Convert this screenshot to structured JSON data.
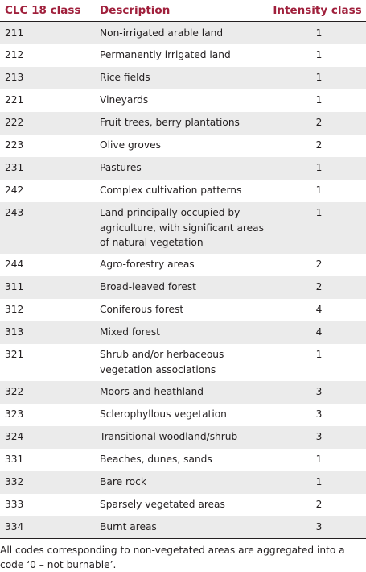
{
  "table": {
    "headers": [
      "CLC 18 class",
      "Description",
      "Intensity class"
    ],
    "rows": [
      {
        "code": "211",
        "description": "Non-irrigated arable land",
        "intensity": "1",
        "lines": 1
      },
      {
        "code": "212",
        "description": "Permanently irrigated land",
        "intensity": "1",
        "lines": 1
      },
      {
        "code": "213",
        "description": "Rice fields",
        "intensity": "1",
        "lines": 1
      },
      {
        "code": "221",
        "description": "Vineyards",
        "intensity": "1",
        "lines": 1
      },
      {
        "code": "222",
        "description": "Fruit trees, berry plantations",
        "intensity": "2",
        "lines": 1
      },
      {
        "code": "223",
        "description": "Olive groves",
        "intensity": "2",
        "lines": 1
      },
      {
        "code": "231",
        "description": "Pastures",
        "intensity": "1",
        "lines": 1
      },
      {
        "code": "242",
        "description": "Complex cultivation patterns",
        "intensity": "1",
        "lines": 1
      },
      {
        "code": "243",
        "description": "Land principally occupied by agriculture, with significant areas of natural vegetation",
        "intensity": "1",
        "lines": 3
      },
      {
        "code": "244",
        "description": "Agro-forestry areas",
        "intensity": "2",
        "lines": 1
      },
      {
        "code": "311",
        "description": "Broad-leaved forest",
        "intensity": "2",
        "lines": 1
      },
      {
        "code": "312",
        "description": "Coniferous forest",
        "intensity": "4",
        "lines": 1
      },
      {
        "code": "313",
        "description": "Mixed forest",
        "intensity": "4",
        "lines": 1
      },
      {
        "code": "321",
        "description": "Shrub and/or herbaceous vegetation associations",
        "intensity": "1",
        "lines": 2
      },
      {
        "code": "322",
        "description": "Moors and heathland",
        "intensity": "3",
        "lines": 1
      },
      {
        "code": "323",
        "description": "Sclerophyllous vegetation",
        "intensity": "3",
        "lines": 1
      },
      {
        "code": "324",
        "description": "Transitional woodland/shrub",
        "intensity": "3",
        "lines": 1
      },
      {
        "code": "331",
        "description": "Beaches, dunes, sands",
        "intensity": "1",
        "lines": 1
      },
      {
        "code": "332",
        "description": "Bare rock",
        "intensity": "1",
        "lines": 1
      },
      {
        "code": "333",
        "description": "Sparsely vegetated areas",
        "intensity": "2",
        "lines": 1
      },
      {
        "code": "334",
        "description": "Burnt areas",
        "intensity": "3",
        "lines": 1
      }
    ]
  },
  "footnote": "All codes corresponding to non-vegetated areas are aggregated into a code ‘0 – not burnable’.",
  "colors": {
    "header_text": "#a0203c",
    "stripe": "#ebebeb",
    "text": "#231f20"
  }
}
